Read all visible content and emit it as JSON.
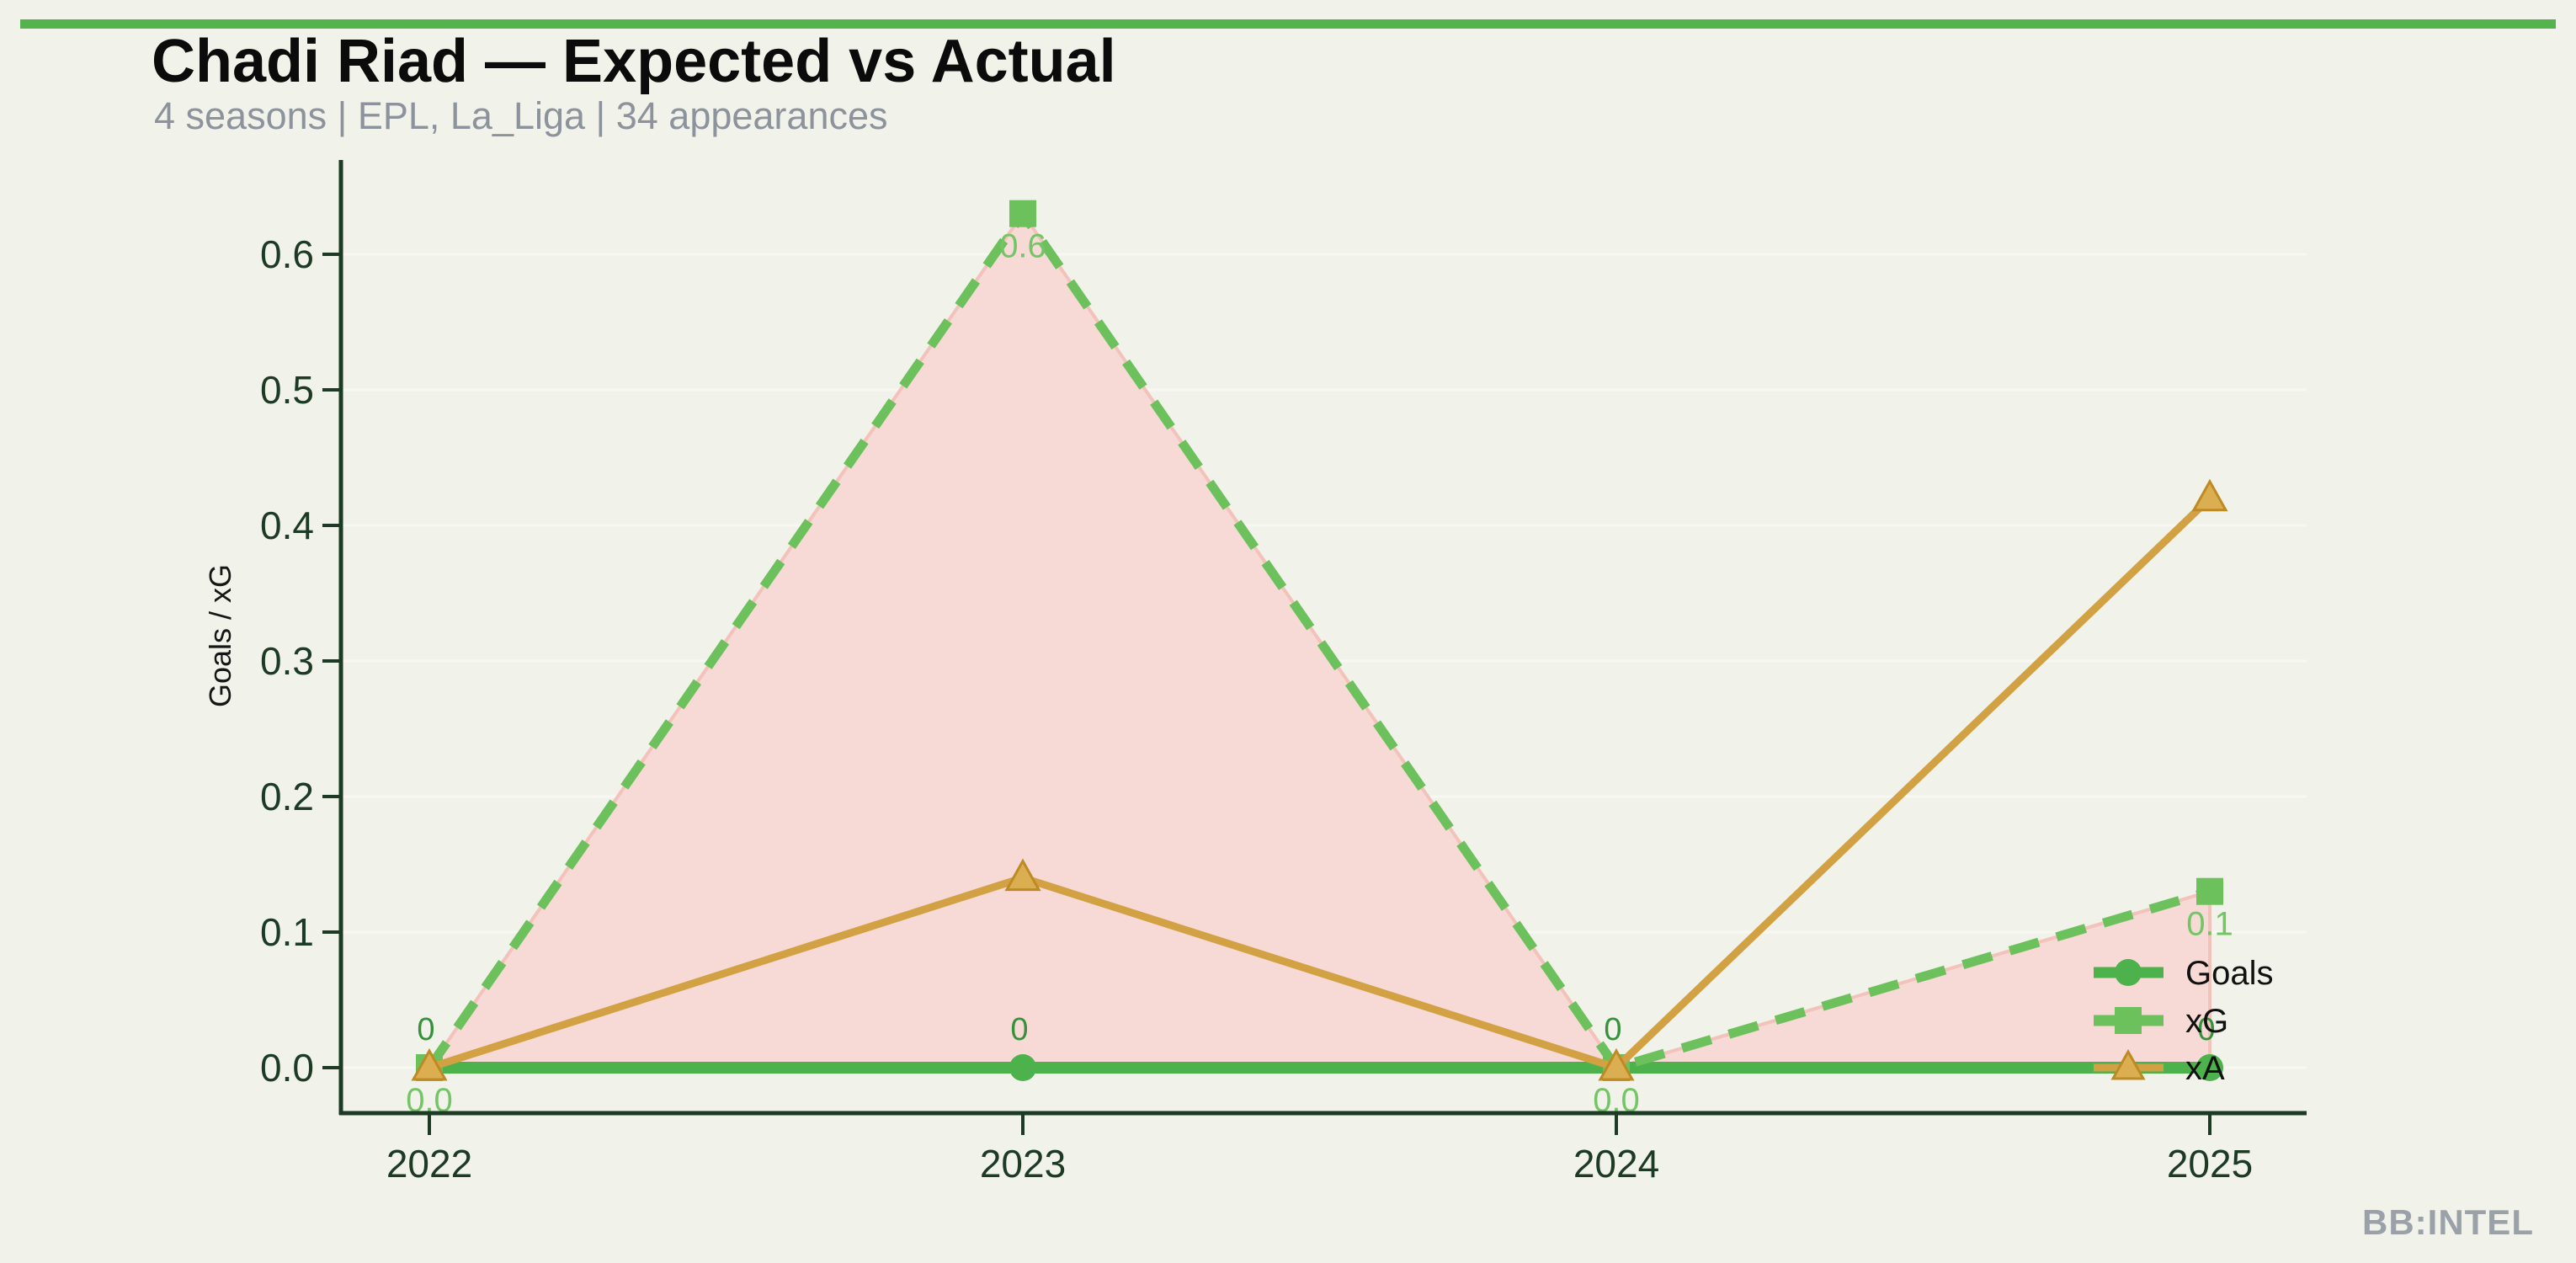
{
  "header": {
    "title": "Chadi Riad — Expected vs Actual",
    "subtitle": "4 seasons | EPL, La_Liga | 34 appearances"
  },
  "watermark": "BB:INTEL",
  "colors": {
    "background": "#f1f2e9",
    "accent_bar": "#55b34e",
    "axis": "#1c3a24",
    "goals": "#4db14c",
    "xg": "#6cc15c",
    "xa": "#d2a143",
    "xa_marker_fill": "#dcae52",
    "xa_marker_edge": "#bd8a23",
    "fill_pink": "#f7d9d5",
    "fill_pink_edge": "#f2c2bb",
    "goals_label": "#35913c",
    "xg_label": "#74c566",
    "subtitle_gray": "#8d939d",
    "watermark_gray": "#9aa1a9"
  },
  "chart_data": {
    "type": "line",
    "title": "Chadi Riad — Expected vs Actual",
    "subtitle": "4 seasons | EPL, La_Liga | 34 appearances",
    "x": [
      2022,
      2023,
      2024,
      2025
    ],
    "xticklabels": [
      "2022",
      "2023",
      "2024",
      "2025"
    ],
    "xlabel": "",
    "ylabel": "Goals / xG",
    "ylim": [
      -0.035,
      0.67
    ],
    "yticks": [
      0.0,
      0.1,
      0.2,
      0.3,
      0.4,
      0.5,
      0.6
    ],
    "yticklabels": [
      "0.0",
      "0.1",
      "0.2",
      "0.3",
      "0.4",
      "0.5",
      "0.6"
    ],
    "grid": "faint horizontal",
    "legend_position": "center right, no frame",
    "series": [
      {
        "name": "Goals",
        "values": [
          0,
          0,
          0,
          0
        ],
        "color": "#4db14c",
        "marker": "circle",
        "line": "solid",
        "labels": [
          "0",
          "0",
          "0",
          "0"
        ]
      },
      {
        "name": "xG",
        "values": [
          0.0,
          0.63,
          0.0,
          0.13
        ],
        "color": "#6cc15c",
        "marker": "square",
        "line": "dashed",
        "labels": [
          "0.0",
          "0.6",
          "0.0",
          "0.1"
        ]
      },
      {
        "name": "xA",
        "values": [
          0.0,
          0.14,
          0.0,
          0.42
        ],
        "color": "#d2a143",
        "marker": "triangle",
        "line": "solid",
        "labels": []
      }
    ],
    "fill_between": {
      "upper": "xG",
      "lower": "Goals",
      "color": "#f7d9d5",
      "edge": "#f2c2bb"
    }
  }
}
